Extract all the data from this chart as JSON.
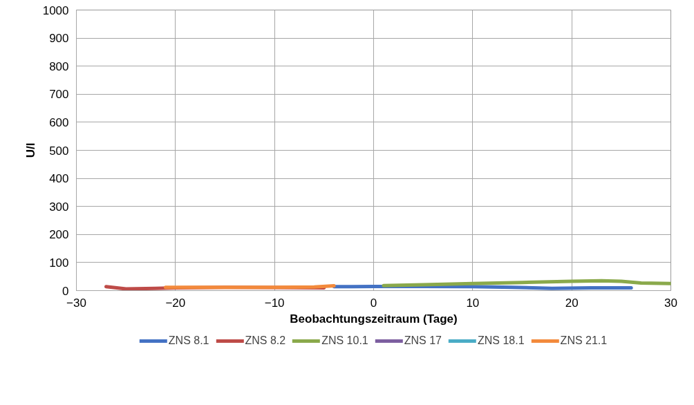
{
  "chart_data": {
    "type": "line",
    "xlabel": "Beobachtungszeitraum (Tage)",
    "ylabel": "U/l",
    "xlim": [
      -30,
      30
    ],
    "xticks": [
      -30,
      -20,
      -10,
      0,
      10,
      20,
      30
    ],
    "ylim": [
      0,
      1000
    ],
    "yticks": [
      0,
      100,
      200,
      300,
      400,
      500,
      600,
      700,
      800,
      900,
      1000
    ],
    "grid": true,
    "legend": "bottom",
    "marker": "none",
    "line_style": "solid",
    "series": [
      {
        "name": "ZNS 8.1",
        "color": "#4472c4",
        "x": [
          -4,
          0,
          5,
          10,
          14,
          18,
          22,
          26
        ],
        "values": [
          14,
          15,
          15,
          14,
          12,
          8,
          10,
          10
        ]
      },
      {
        "name": "ZNS 8.2",
        "color": "#be4b48",
        "x": [
          -27,
          -25,
          -22,
          -20,
          -15,
          -10,
          -5
        ],
        "values": [
          14,
          6,
          8,
          10,
          12,
          11,
          10
        ]
      },
      {
        "name": "ZNS 10.1",
        "color": "#8aa94b",
        "x": [
          1,
          5,
          10,
          15,
          20,
          23,
          25,
          27,
          30
        ],
        "values": [
          18,
          21,
          25,
          29,
          33,
          35,
          33,
          27,
          25
        ]
      },
      {
        "name": "ZNS 17",
        "color": "#7d5fa0"
      },
      {
        "name": "ZNS 18.1",
        "color": "#4aacc6"
      },
      {
        "name": "ZNS 21.1",
        "color": "#f38a3c",
        "x": [
          -21,
          -15,
          -10,
          -6,
          -4
        ],
        "values": [
          12,
          12,
          12,
          13,
          17
        ]
      }
    ]
  }
}
